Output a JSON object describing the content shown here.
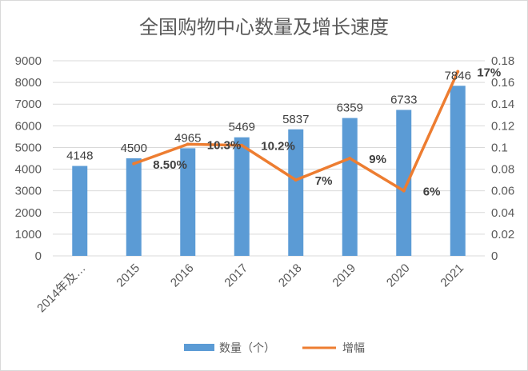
{
  "chart_data": {
    "type": "bar",
    "title": "全国购物中心数量及增长速度",
    "categories": [
      "2014年及…",
      "2015",
      "2016",
      "2017",
      "2018",
      "2019",
      "2020",
      "2021"
    ],
    "series": [
      {
        "name": "数量（个）",
        "type": "bar",
        "axis": "left",
        "values": [
          4148,
          4500,
          4965,
          5469,
          5837,
          6359,
          6733,
          7846
        ],
        "labels": [
          "4148",
          "4500",
          "4965",
          "5469",
          "5837",
          "6359",
          "6733",
          "7846"
        ],
        "color": "#5b9bd5"
      },
      {
        "name": "增幅",
        "type": "line",
        "axis": "right",
        "values": [
          null,
          0.085,
          0.103,
          0.102,
          0.07,
          0.09,
          0.06,
          0.17
        ],
        "labels": [
          null,
          "8.50%",
          "10.3%",
          "10.2%",
          "7%",
          "9%",
          "6%",
          "17%"
        ],
        "color": "#ed7d31"
      }
    ],
    "y_left": {
      "min": 0,
      "max": 9000,
      "ticks": [
        "0",
        "1000",
        "2000",
        "3000",
        "4000",
        "5000",
        "6000",
        "7000",
        "8000",
        "9000"
      ]
    },
    "y_right": {
      "min": 0,
      "max": 0.18,
      "ticks": [
        "0",
        "0.02",
        "0.04",
        "0.06",
        "0.08",
        "0.1",
        "0.12",
        "0.14",
        "0.16",
        "0.18"
      ]
    },
    "grid": true,
    "legend": "bottom"
  }
}
